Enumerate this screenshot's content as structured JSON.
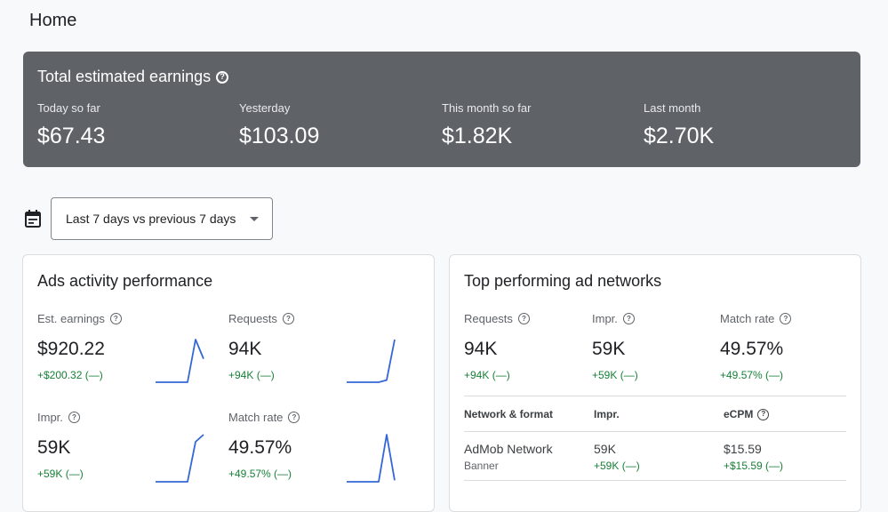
{
  "page": {
    "title": "Home"
  },
  "earnings": {
    "title": "Total estimated earnings",
    "items": [
      {
        "label": "Today so far",
        "value": "$67.43"
      },
      {
        "label": "Yesterday",
        "value": "$103.09"
      },
      {
        "label": "This month so far",
        "value": "$1.82K"
      },
      {
        "label": "Last month",
        "value": "$2.70K"
      }
    ]
  },
  "date_range": {
    "selected": "Last 7 days vs previous 7 days"
  },
  "ads_activity": {
    "title": "Ads activity performance",
    "metrics": [
      {
        "label": "Est. earnings",
        "value": "$920.22",
        "delta": "+$200.32 (—)",
        "spark": [
          0,
          0,
          0,
          0,
          0,
          1,
          0.55
        ]
      },
      {
        "label": "Requests",
        "value": "94K",
        "delta": "+94K (—)",
        "spark": [
          0,
          0,
          0,
          0,
          0,
          0.05,
          1
        ]
      },
      {
        "label": "Impr.",
        "value": "59K",
        "delta": "+59K (—)",
        "spark": [
          0,
          0,
          0,
          0,
          0,
          0.85,
          1
        ]
      },
      {
        "label": "Match rate",
        "value": "49.57%",
        "delta": "+49.57% (—)",
        "spark": [
          0,
          0,
          0,
          0,
          0,
          1,
          0.03
        ]
      }
    ]
  },
  "top_networks": {
    "title": "Top performing ad networks",
    "metrics": [
      {
        "label": "Requests",
        "value": "94K",
        "delta": "+94K (—)"
      },
      {
        "label": "Impr.",
        "value": "59K",
        "delta": "+59K (—)"
      },
      {
        "label": "Match rate",
        "value": "49.57%",
        "delta": "+49.57% (—)"
      }
    ],
    "table": {
      "headers": [
        "Network & format",
        "Impr.",
        "eCPM"
      ],
      "rows": [
        {
          "network": "AdMob Network",
          "format": "Banner",
          "impr": "59K",
          "impr_delta": "+59K (—)",
          "ecpm": "$15.59",
          "ecpm_delta": "+$15.59 (—)"
        }
      ]
    }
  },
  "colors": {
    "banner": "#5f6368",
    "spark_line": "#3367d6",
    "positive": "#188038"
  }
}
